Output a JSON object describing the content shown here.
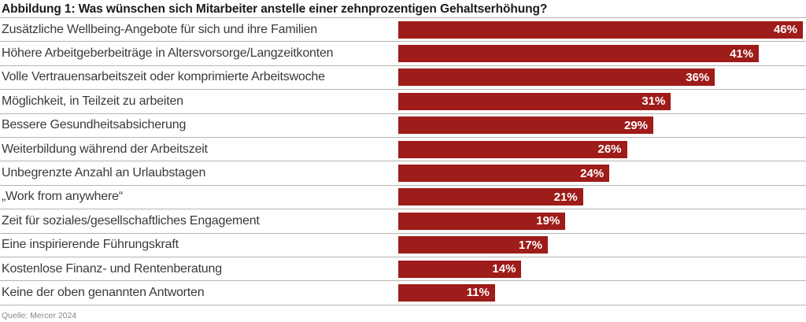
{
  "title": "Abbildung 1: Was wünschen sich Mitarbeiter anstelle einer zehnprozentigen Gehaltserhöhung?",
  "source": "Quelle: Mercer 2024",
  "colors": {
    "bar": "#9e1c19",
    "title_text": "#1a1a1a",
    "label_text": "#3a3a3a",
    "separator": "#b3b3b3",
    "value_text": "#ffffff",
    "source_text": "#878787"
  },
  "chart_data": {
    "type": "bar",
    "orientation": "horizontal",
    "title": "Abbildung 1: Was wünschen sich Mitarbeiter anstelle einer zehnprozentigen Gehaltserhöhung?",
    "categories": [
      "Zusätzliche Wellbeing-Angebote für sich und ihre Familien",
      "Höhere Arbeitgeberbeiträge in Altersvorsorge/Langzeitkonten",
      "Volle Vertrauensarbeitszeit oder komprimierte Arbeitswoche",
      "Möglichkeit, in Teilzeit zu arbeiten",
      "Bessere Gesundheitsabsicherung",
      "Weiterbildung während der Arbeitszeit",
      "Unbegrenzte Anzahl an Urlaubstagen",
      "„Work from anywhere“",
      "Zeit für soziales/gesellschaftliches Engagement",
      "Eine inspirierende Führungskraft",
      "Kostenlose Finanz- und Rentenberatung",
      "Keine der oben genannten Antworten"
    ],
    "values": [
      46,
      41,
      36,
      31,
      29,
      26,
      24,
      21,
      19,
      17,
      14,
      11
    ],
    "value_labels": [
      "46%",
      "41%",
      "36%",
      "31%",
      "29%",
      "26%",
      "24%",
      "21%",
      "19%",
      "17%",
      "14%",
      "11%"
    ],
    "unit": "%",
    "xlim": [
      0,
      46
    ],
    "grid": false,
    "legend": false,
    "value_labels_position": "inside-end",
    "source": "Quelle: Mercer 2024"
  }
}
